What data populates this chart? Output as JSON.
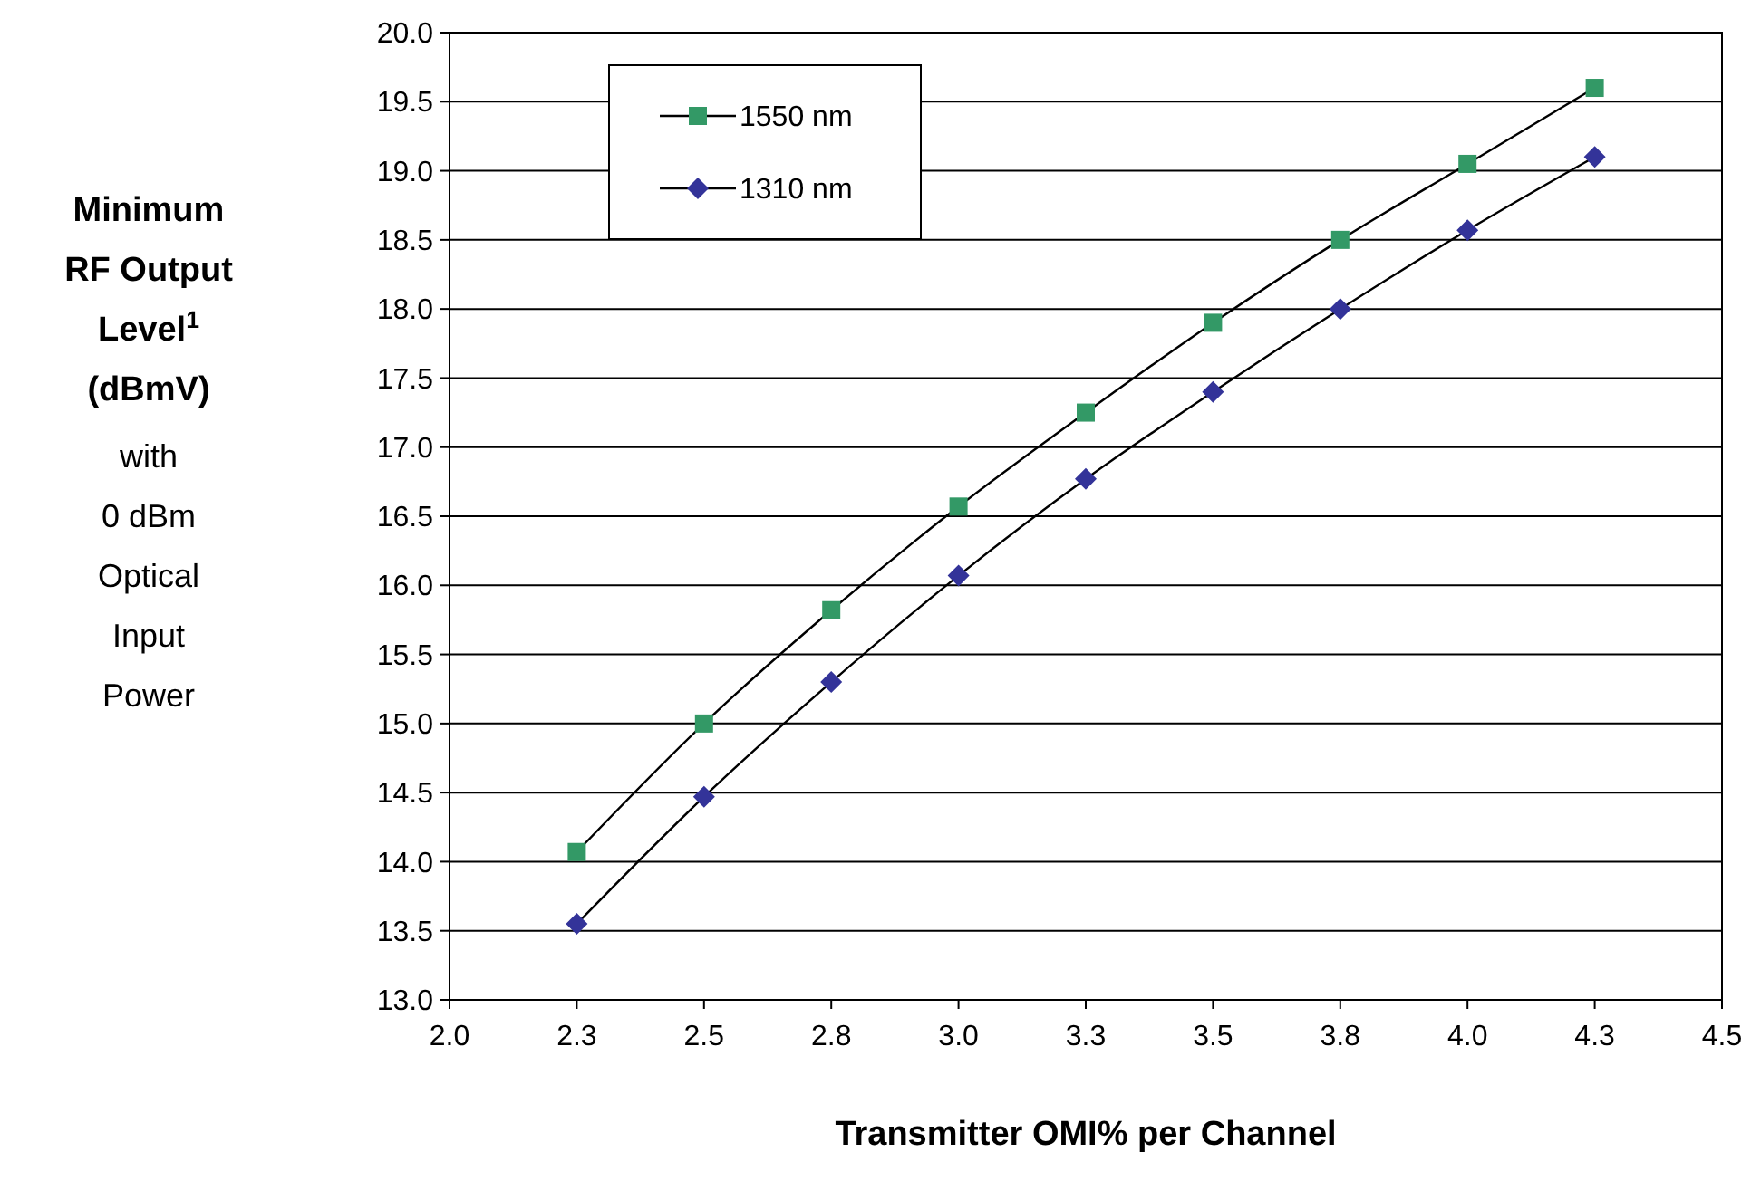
{
  "chart_data": {
    "type": "line",
    "xlabel": "Transmitter OMI% per Channel",
    "ylabel": "Minimum RF Output Level$^{1}$ (dBmV)",
    "annotations": [
      "with 0 dBm Optical Input Power"
    ],
    "x": [
      2.25,
      2.5,
      2.75,
      3.0,
      3.25,
      3.5,
      3.75,
      4.0,
      4.25
    ],
    "series": [
      {
        "name": "1550 nm",
        "color": "#339966",
        "marker": "square",
        "values": [
          14.07,
          15.0,
          15.82,
          16.57,
          17.25,
          17.9,
          18.5,
          19.05,
          19.6
        ]
      },
      {
        "name": "1310 nm",
        "color": "#333399",
        "marker": "diamond",
        "values": [
          13.55,
          14.47,
          15.3,
          16.07,
          16.77,
          17.4,
          18.0,
          18.57,
          19.1
        ]
      }
    ],
    "xlim": [
      2.0,
      4.5
    ],
    "xticks": [
      "2.0",
      {
        "value": 2.25,
        "label": "2.3"
      },
      "2.5",
      {
        "value": 2.75,
        "label": "2.8"
      },
      "3.0",
      {
        "value": 3.25,
        "label": "3.3"
      },
      "3.5",
      {
        "value": 3.75,
        "label": "3.8"
      },
      "4.0",
      {
        "value": 4.25,
        "label": "4.3"
      },
      "4.5"
    ],
    "ylim": [
      13,
      20
    ],
    "yticks": [
      {
        "value": 13,
        "label": "13.0"
      },
      {
        "value": 13.5,
        "label": "13.5"
      },
      {
        "value": 14,
        "label": "14.0"
      },
      {
        "value": 14.5,
        "label": "14.5"
      },
      {
        "value": 15,
        "label": "15.0"
      },
      {
        "value": 15.5,
        "label": "15.5"
      },
      {
        "value": 16,
        "label": "16.0"
      },
      {
        "value": 16.5,
        "label": "16.5"
      },
      {
        "value": 17,
        "label": "17.0"
      },
      {
        "value": 17.5,
        "label": "17.5"
      },
      {
        "value": 18,
        "label": "18.0"
      },
      {
        "value": 18.5,
        "label": "18.5"
      },
      {
        "value": 19,
        "label": "19.0"
      },
      {
        "value": 19.5,
        "label": "19.5"
      },
      {
        "value": 20,
        "label": "20.0"
      }
    ],
    "grid": "y",
    "legend": "top left",
    "line_style": "solid"
  }
}
